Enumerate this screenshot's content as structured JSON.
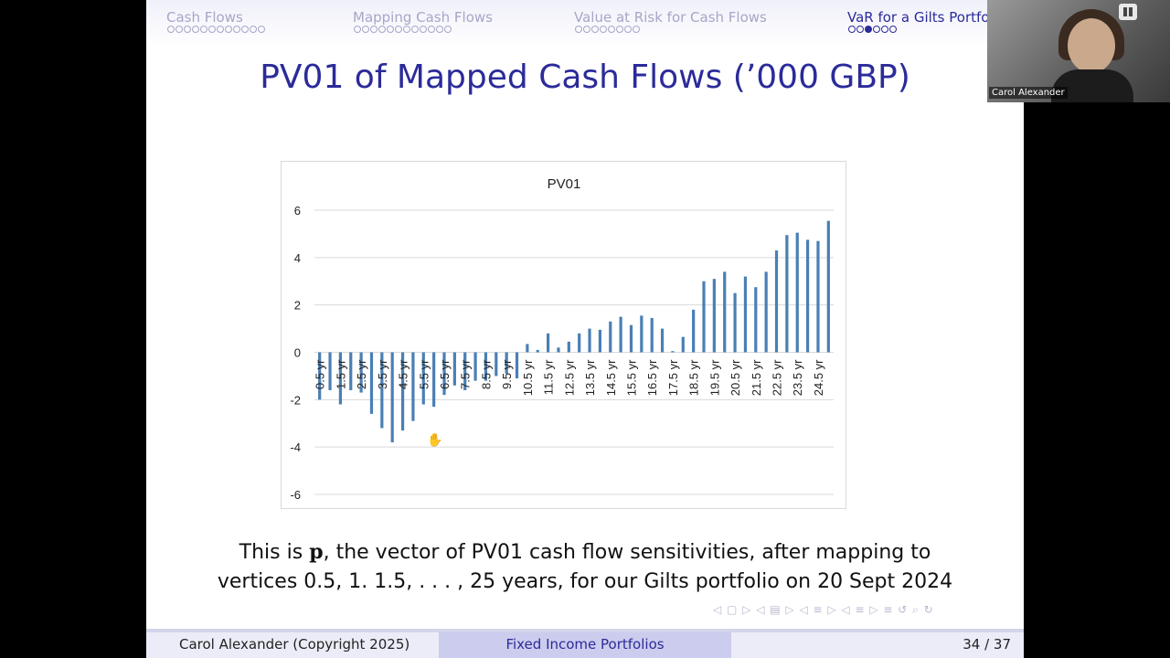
{
  "nav": {
    "sections": [
      {
        "label": "Cash Flows",
        "dots": 12,
        "filled": -1,
        "active": false
      },
      {
        "label": "Mapping Cash Flows",
        "dots": 12,
        "filled": -1,
        "active": false
      },
      {
        "label": "Value at Risk for Cash Flows",
        "dots": 8,
        "filled": -1,
        "active": false
      },
      {
        "label": "VaR for a Gilts Portfo",
        "dots": 6,
        "filled": 2,
        "active": true
      }
    ]
  },
  "slide": {
    "title": "PV01 of Mapped Cash Flows (’000 GBP)",
    "caption_line1_pre": "This is ",
    "caption_vector": "p",
    "caption_line1_post": ", the vector of PV01 cash flow sensitivities, after mapping to",
    "caption_line2": "vertices 0.5, 1. 1.5, . . . , 25 years, for our Gilts portfolio on 20 Sept 2024",
    "controls": "◁ ▢ ▷  ◁ ▤ ▷  ◁ ≡ ▷  ◁ ≡ ▷  ≡   ↺ ⌕ ↻"
  },
  "footer": {
    "author": "Carol Alexander   (Copyright 2025)",
    "course": "Fixed Income Portfolios",
    "page": "34 / 37"
  },
  "webcam": {
    "name": "Carol Alexander"
  },
  "chart_data": {
    "type": "bar",
    "title": "PV01",
    "xlabel": "",
    "ylabel": "",
    "ylim": [
      -6,
      6
    ],
    "yticks": [
      6,
      4,
      2,
      0,
      -2,
      -4,
      -6
    ],
    "categories": [
      "0.5 yr",
      "1 yr",
      "1.5 yr",
      "2 yr",
      "2.5 yr",
      "3 yr",
      "3.5 yr",
      "4 yr",
      "4.5 yr",
      "5 yr",
      "5.5 yr",
      "6 yr",
      "6.5 yr",
      "7 yr",
      "7.5 yr",
      "8 yr",
      "8.5 yr",
      "9 yr",
      "9.5 yr",
      "10 yr",
      "10.5 yr",
      "11 yr",
      "11.5 yr",
      "12 yr",
      "12.5 yr",
      "13 yr",
      "13.5 yr",
      "14 yr",
      "14.5 yr",
      "15 yr",
      "15.5 yr",
      "16 yr",
      "16.5 yr",
      "17 yr",
      "17.5 yr",
      "18 yr",
      "18.5 yr",
      "19 yr",
      "19.5 yr",
      "20 yr",
      "20.5 yr",
      "21 yr",
      "21.5 yr",
      "22 yr",
      "22.5 yr",
      "23 yr",
      "23.5 yr",
      "24 yr",
      "24.5 yr",
      "25 yr"
    ],
    "shown_labels": [
      "0.5 yr",
      "1.5 yr",
      "2.5 yr",
      "3.5 yr",
      "4.5 yr",
      "5.5 yr",
      "6.5 yr",
      "7.5 yr",
      "8.5 yr",
      "9.5 yr",
      "10.5 yr",
      "11.5 yr",
      "12.5 yr",
      "13.5 yr",
      "14.5 yr",
      "15.5 yr",
      "16.5 yr",
      "17.5 yr",
      "18.5 yr",
      "19.5 yr",
      "20.5 yr",
      "21.5 yr",
      "22.5 yr",
      "23.5 yr",
      "24.5 yr"
    ],
    "values": [
      -2.0,
      -1.6,
      -2.2,
      -1.6,
      -1.7,
      -2.6,
      -3.2,
      -3.8,
      -3.3,
      -2.9,
      -2.2,
      -2.3,
      -1.8,
      -1.4,
      -1.6,
      -1.2,
      -1.2,
      -1.0,
      -0.9,
      -1.1,
      0.35,
      0.1,
      0.8,
      0.2,
      0.45,
      0.8,
      1.0,
      0.95,
      1.3,
      1.5,
      1.15,
      1.55,
      1.45,
      1.0,
      0.05,
      0.65,
      1.8,
      3.0,
      3.1,
      3.4,
      2.5,
      3.2,
      2.75,
      3.4,
      4.3,
      4.95,
      5.05,
      4.75,
      4.7,
      5.55
    ],
    "color": "#4a7fb5",
    "grid": true
  }
}
